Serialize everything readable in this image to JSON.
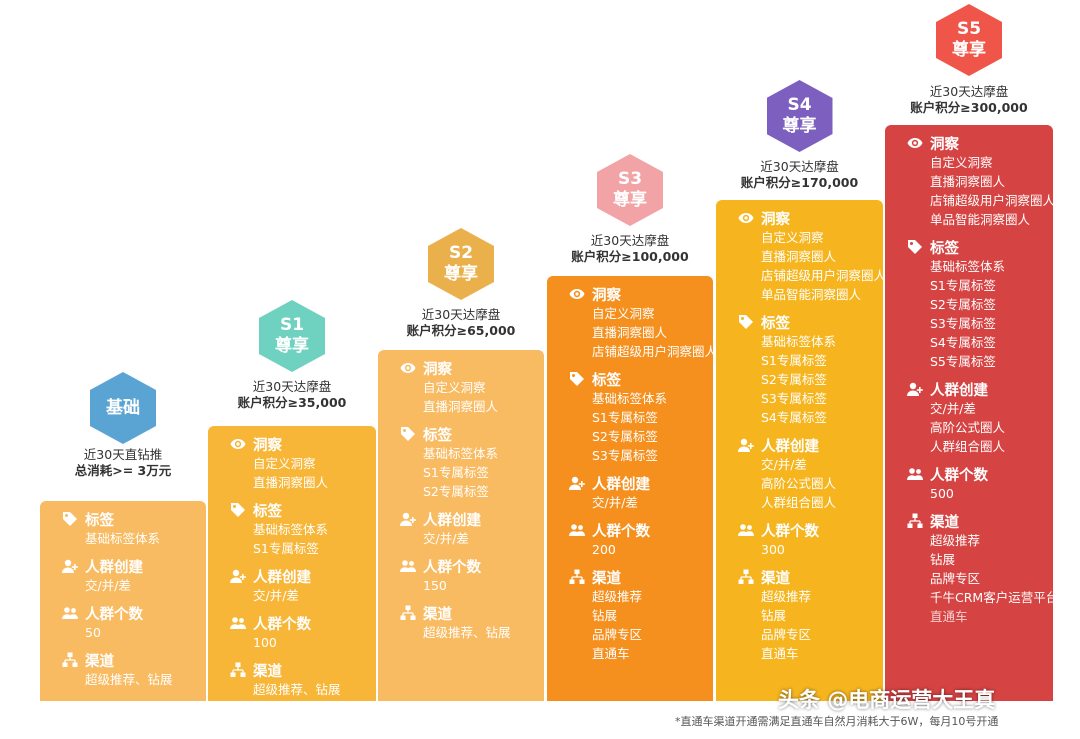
{
  "tiers": [
    {
      "id": "basic",
      "badge": [
        "基础"
      ],
      "badge_color": "#5aa4d3",
      "box_color": "#f9bb62",
      "req_lines": [
        "近30天直钻推",
        "总消耗>= 3万元"
      ],
      "req_bold": ">= 3万元",
      "sections": [
        {
          "icon": "tag-icon",
          "title": "标签",
          "items": [
            "基础标签体系"
          ]
        },
        {
          "icon": "user-add-icon",
          "title": "人群创建",
          "items": [
            "交/并/差"
          ]
        },
        {
          "icon": "users-icon",
          "title": "人群个数",
          "items": [
            "50"
          ]
        },
        {
          "icon": "channel-icon",
          "title": "渠道",
          "items": [
            "超级推荐、钻展"
          ]
        }
      ]
    },
    {
      "id": "s1",
      "badge": [
        "S1",
        "尊享"
      ],
      "badge_color": "#6fd2c0",
      "box_color": "#f8b638",
      "req_lines": [
        "近30天达摩盘",
        "账户积分≥35,000"
      ],
      "sections": [
        {
          "icon": "eye-icon",
          "title": "洞察",
          "items": [
            "自定义洞察",
            "直播洞察圈人"
          ]
        },
        {
          "icon": "tag-icon",
          "title": "标签",
          "items": [
            "基础标签体系",
            "S1专属标签"
          ]
        },
        {
          "icon": "user-add-icon",
          "title": "人群创建",
          "items": [
            "交/并/差"
          ]
        },
        {
          "icon": "users-icon",
          "title": "人群个数",
          "items": [
            "100"
          ]
        },
        {
          "icon": "channel-icon",
          "title": "渠道",
          "items": [
            "超级推荐、钻展"
          ]
        }
      ]
    },
    {
      "id": "s2",
      "badge": [
        "S2",
        "尊享"
      ],
      "badge_color": "#e9b04b",
      "box_color": "#f9bb62",
      "req_lines": [
        "近30天达摩盘",
        "账户积分≥65,000"
      ],
      "sections": [
        {
          "icon": "eye-icon",
          "title": "洞察",
          "items": [
            "自定义洞察",
            "直播洞察圈人"
          ]
        },
        {
          "icon": "tag-icon",
          "title": "标签",
          "items": [
            "基础标签体系",
            "S1专属标签",
            "S2专属标签"
          ]
        },
        {
          "icon": "user-add-icon",
          "title": "人群创建",
          "items": [
            "交/并/差"
          ]
        },
        {
          "icon": "users-icon",
          "title": "人群个数",
          "items": [
            "150"
          ]
        },
        {
          "icon": "channel-icon",
          "title": "渠道",
          "items": [
            "超级推荐、钻展"
          ]
        }
      ]
    },
    {
      "id": "s3",
      "badge": [
        "S3",
        "尊享"
      ],
      "badge_color": "#f2a3a6",
      "box_color": "#f5901f",
      "req_lines": [
        "近30天达摩盘",
        "账户积分≥100,000"
      ],
      "sections": [
        {
          "icon": "eye-icon",
          "title": "洞察",
          "items": [
            "自定义洞察",
            "直播洞察圈人",
            "店铺超级用户洞察圈人"
          ]
        },
        {
          "icon": "tag-icon",
          "title": "标签",
          "items": [
            "基础标签体系",
            "S1专属标签",
            "S2专属标签",
            "S3专属标签"
          ]
        },
        {
          "icon": "user-add-icon",
          "title": "人群创建",
          "items": [
            "交/并/差"
          ]
        },
        {
          "icon": "users-icon",
          "title": "人群个数",
          "items": [
            "200"
          ]
        },
        {
          "icon": "channel-icon",
          "title": "渠道",
          "items": [
            "超级推荐",
            "钻展",
            "品牌专区",
            "直通车"
          ]
        }
      ]
    },
    {
      "id": "s4",
      "badge": [
        "S4",
        "尊享"
      ],
      "badge_color": "#7c5fbe",
      "box_color": "#f6b51f",
      "req_lines": [
        "近30天达摩盘",
        "账户积分≥170,000"
      ],
      "sections": [
        {
          "icon": "eye-icon",
          "title": "洞察",
          "items": [
            "自定义洞察",
            "直播洞察圈人",
            "店铺超级用户洞察圈人",
            "单品智能洞察圈人"
          ]
        },
        {
          "icon": "tag-icon",
          "title": "标签",
          "items": [
            "基础标签体系",
            "S1专属标签",
            "S2专属标签",
            "S3专属标签",
            "S4专属标签"
          ]
        },
        {
          "icon": "user-add-icon",
          "title": "人群创建",
          "items": [
            "交/并/差",
            "高阶公式圈人",
            "人群组合圈人"
          ]
        },
        {
          "icon": "users-icon",
          "title": "人群个数",
          "items": [
            "300"
          ]
        },
        {
          "icon": "channel-icon",
          "title": "渠道",
          "items": [
            "超级推荐",
            "钻展",
            "品牌专区",
            "直通车"
          ]
        }
      ]
    },
    {
      "id": "s5",
      "badge": [
        "S5",
        "尊享"
      ],
      "badge_color": "#ef5548",
      "box_color": "#d64343",
      "req_lines": [
        "近30天达摩盘",
        "账户积分≥300,000"
      ],
      "sections": [
        {
          "icon": "eye-icon",
          "title": "洞察",
          "items": [
            "自定义洞察",
            "直播洞察圈人",
            "店铺超级用户洞察圈人",
            "单品智能洞察圈人"
          ]
        },
        {
          "icon": "tag-icon",
          "title": "标签",
          "items": [
            "基础标签体系",
            "S1专属标签",
            "S2专属标签",
            "S3专属标签",
            "S4专属标签",
            "S5专属标签"
          ]
        },
        {
          "icon": "user-add-icon",
          "title": "人群创建",
          "items": [
            "交/并/差",
            "高阶公式圈人",
            "人群组合圈人"
          ]
        },
        {
          "icon": "users-icon",
          "title": "人群个数",
          "items": [
            "500"
          ]
        },
        {
          "icon": "channel-icon",
          "title": "渠道",
          "items": [
            "超级推荐",
            "钻展",
            "品牌专区",
            "千牛CRM客户运营平台",
            "直通车"
          ]
        }
      ]
    }
  ],
  "footnote": "*直通车渠道开通需满足直通车自然月消耗大于6W，每月10号开通",
  "watermark": "头条 @电商运营大王真"
}
